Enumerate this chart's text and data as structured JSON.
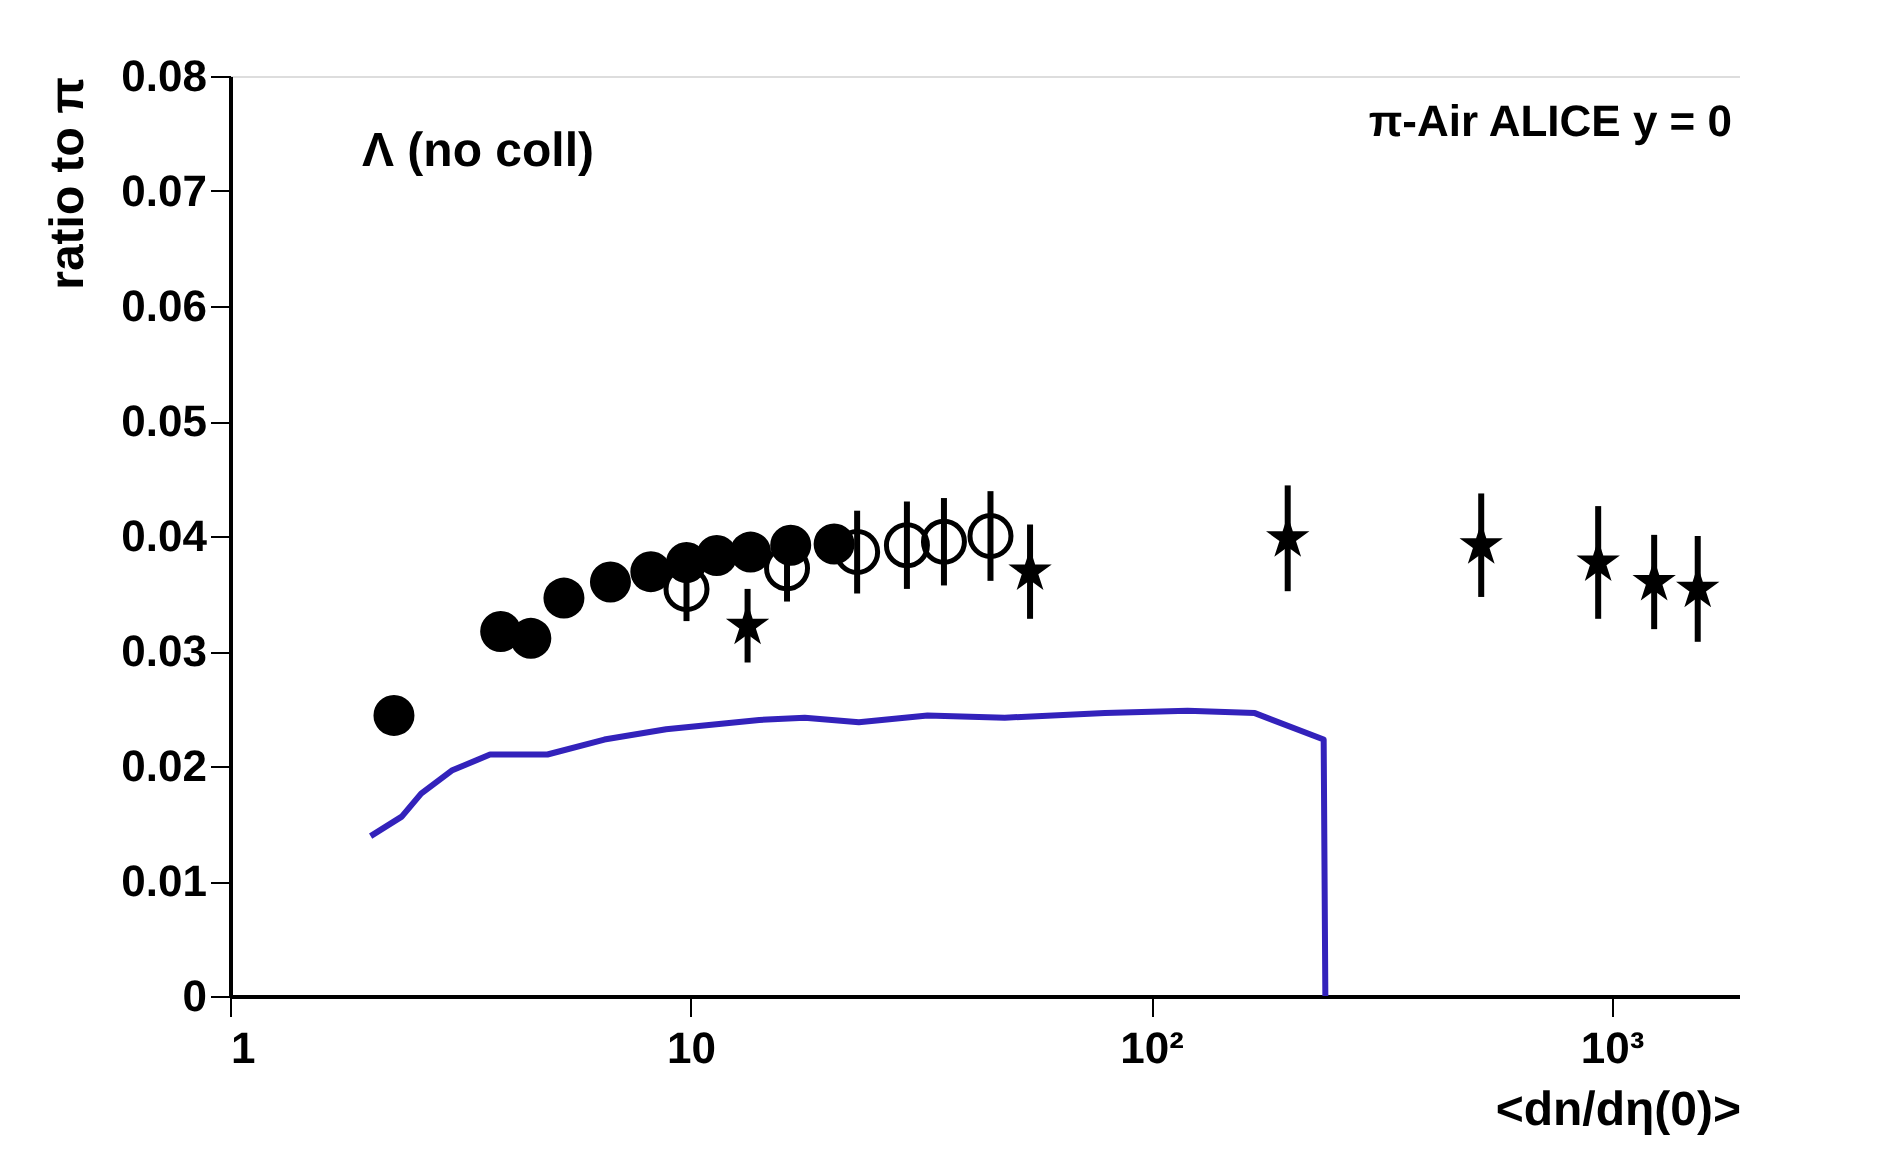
{
  "chart_data": {
    "type": "scatter",
    "xlabel": "<dn/dη(0)>",
    "ylabel": "ratio to π",
    "log": "x",
    "xlim": [
      1,
      1900
    ],
    "ylim": [
      0,
      0.08
    ],
    "xticks": [
      1,
      10,
      {
        "value": 100,
        "label": "10²"
      },
      {
        "value": 1000,
        "label": "10³"
      }
    ],
    "yticks": [
      0,
      0.01,
      0.02,
      0.03,
      0.04,
      0.05,
      0.06,
      0.07,
      0.08
    ],
    "grid": false,
    "annotations": [
      "Λ (no coll)",
      "π-Air ALICE y = 0"
    ],
    "series": [
      {
        "type": "line",
        "color": "#3322bb",
        "marker": "none",
        "line_style": "solid",
        "x": [
          2.02,
          2.36,
          2.6,
          3.03,
          3.67,
          4.89,
          6.5,
          8.85,
          14.1,
          17.7,
          23.2,
          32.7,
          48.1,
          79.4,
          120,
          168,
          237,
          239
        ],
        "values": [
          0.0139,
          0.0156,
          0.0176,
          0.0196,
          0.021,
          0.021,
          0.0223,
          0.0232,
          0.024,
          0.0242,
          0.0238,
          0.0244,
          0.0242,
          0.0246,
          0.0248,
          0.0246,
          0.0223,
          0
        ]
      },
      {
        "color": "#000000",
        "marker": "circle",
        "x": [
          2.27,
          3.87,
          4.5,
          5.31,
          6.7,
          8.2,
          9.8,
          11.4,
          13.5,
          16.5,
          20.5
        ],
        "values": [
          0.0244,
          0.0317,
          0.0311,
          0.0346,
          0.036,
          0.0369,
          0.0377,
          0.0383,
          0.0386,
          0.0392,
          0.0393
        ]
      },
      {
        "color": "#000000",
        "marker": "circle",
        "x": [
          9.8,
          16.2,
          23,
          29.5,
          35.5,
          44.8
        ],
        "values": [
          0.0354,
          0.0372,
          0.0386,
          0.0392,
          0.0395,
          0.04
        ],
        "errors": [
          0.0028,
          0.0029,
          0.0036,
          0.0038,
          0.0038,
          0.0039
        ]
      },
      {
        "color": "#000000",
        "marker": "star",
        "x": [
          13.3,
          54.6,
          198,
          521,
          935,
          1237,
          1538
        ],
        "values": [
          0.0322,
          0.0369,
          0.0398,
          0.0392,
          0.0377,
          0.036,
          0.0354
        ],
        "errors": [
          0.0032,
          0.0041,
          0.0046,
          0.0045,
          0.0049,
          0.0041,
          0.0046
        ]
      }
    ]
  }
}
